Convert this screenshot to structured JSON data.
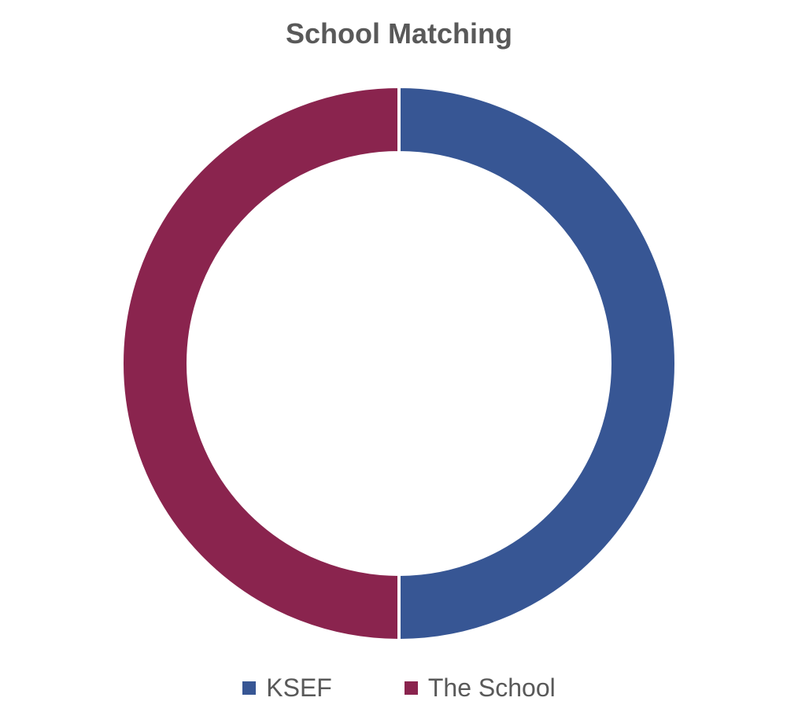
{
  "chart_data": {
    "type": "pie",
    "variant": "donut",
    "title": "School Matching",
    "categories": [
      "KSEF",
      "The School"
    ],
    "values": [
      50,
      50
    ],
    "colors": [
      "#375694",
      "#8A244E"
    ],
    "legend_position": "bottom"
  }
}
